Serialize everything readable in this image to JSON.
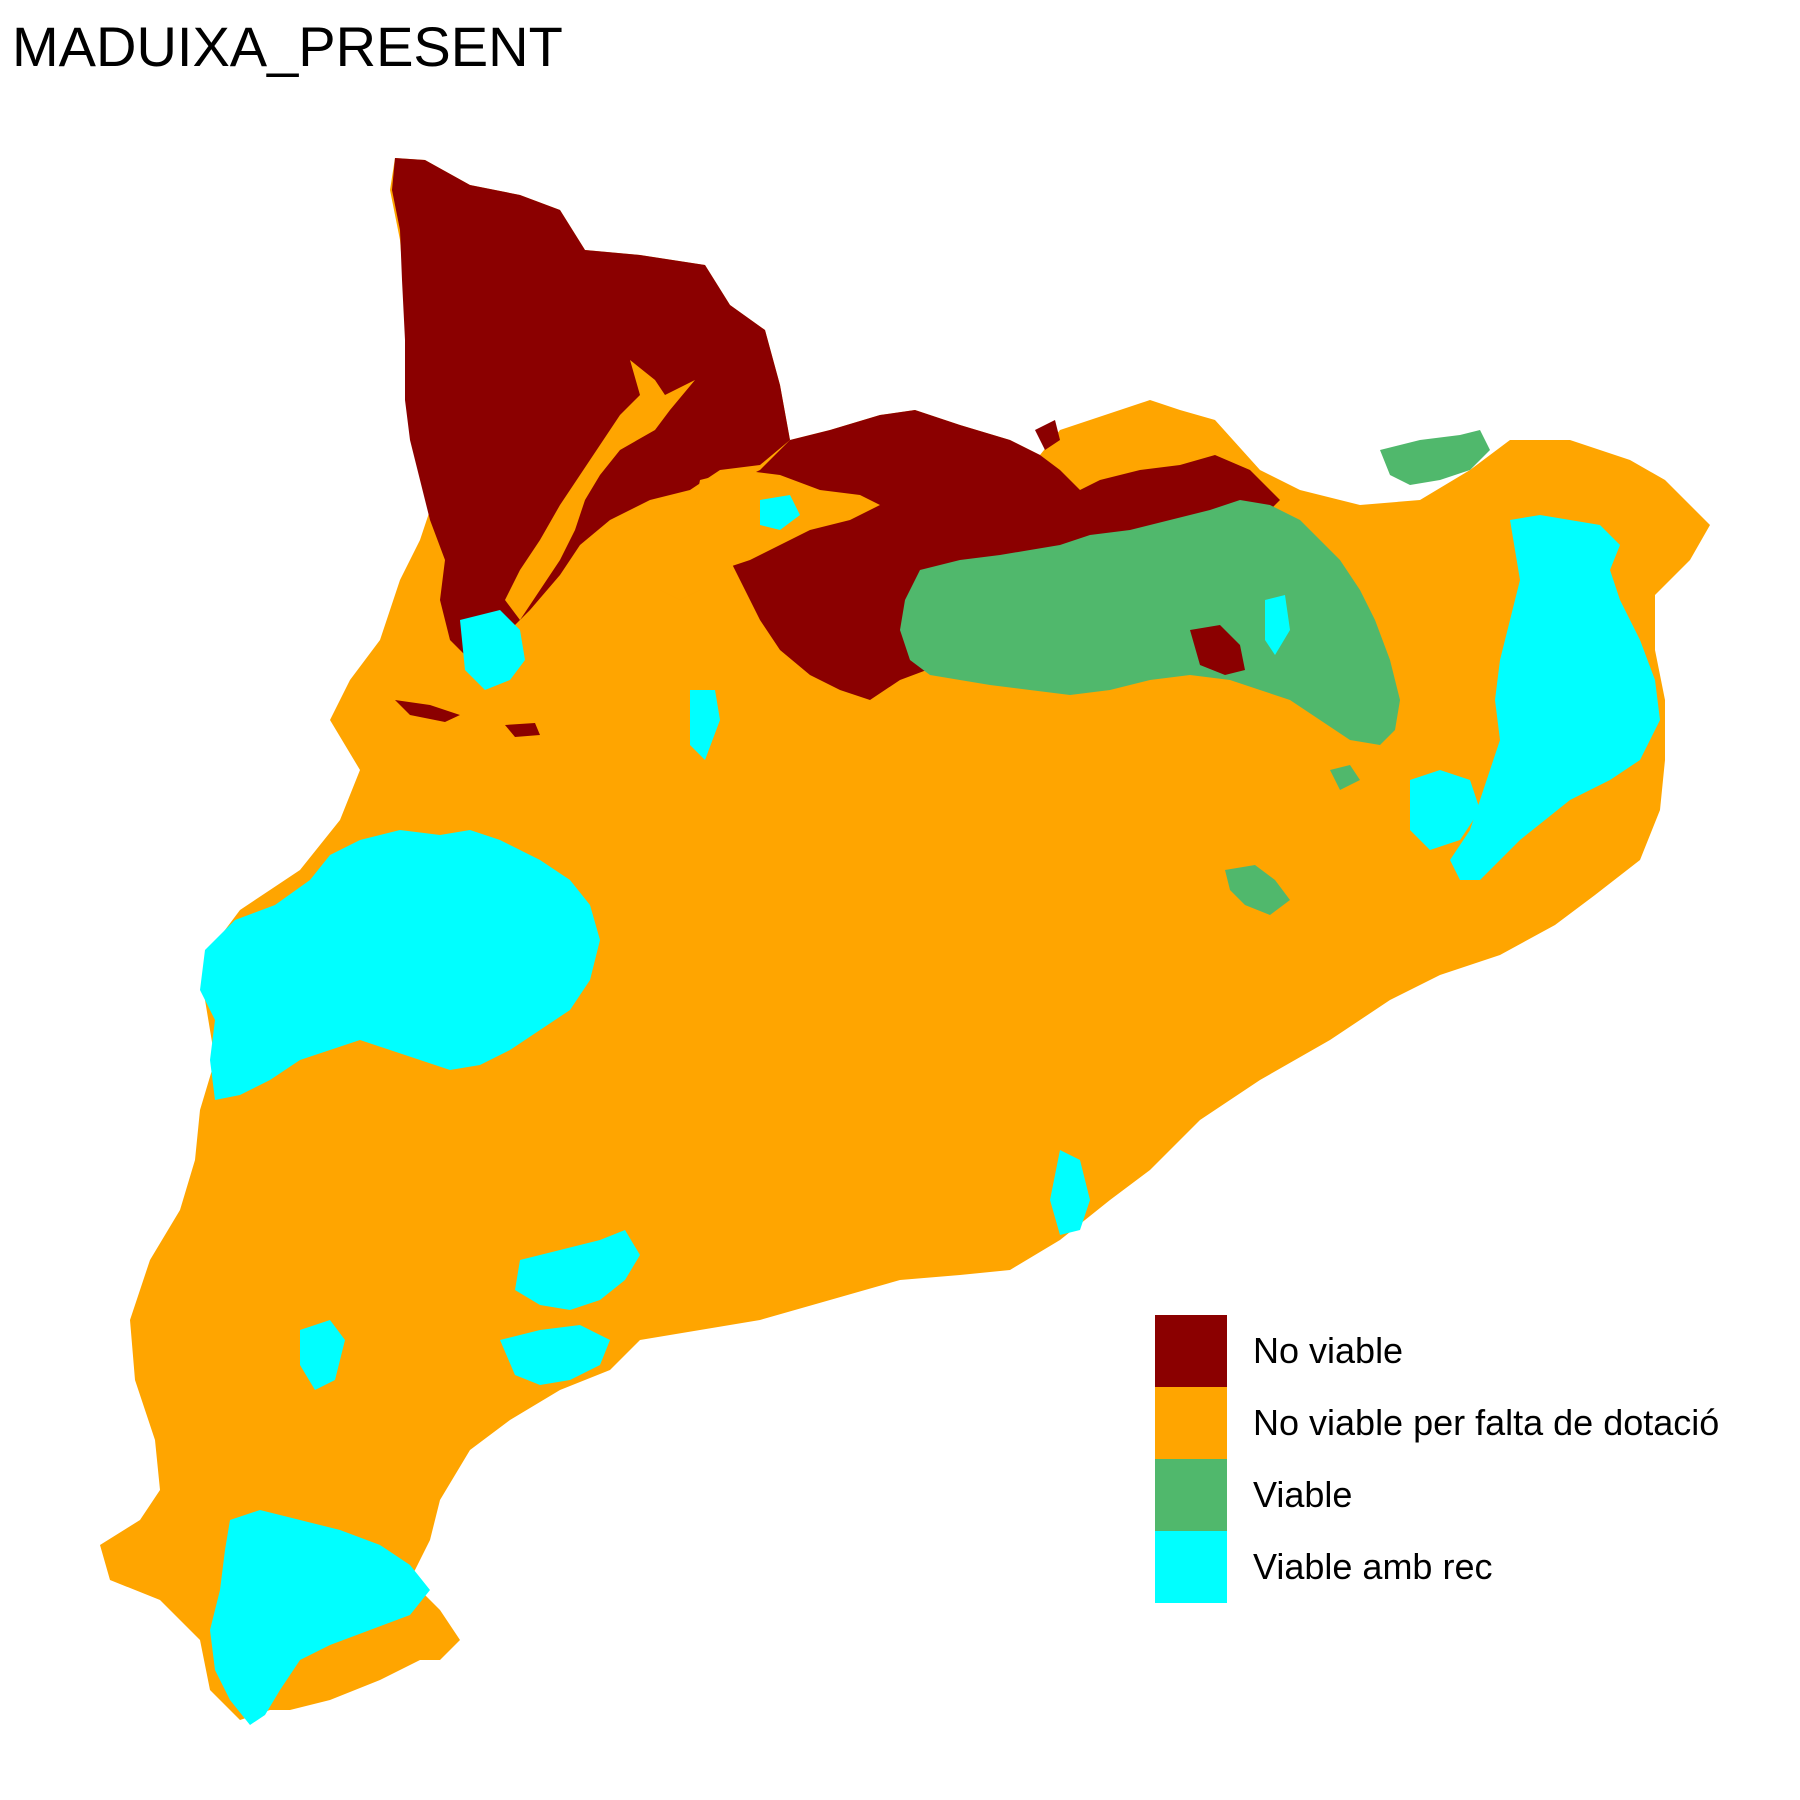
{
  "title": "MADUIXA_PRESENT",
  "legend": {
    "items": [
      {
        "label": "No viable",
        "color": "#8B0000"
      },
      {
        "label": "No viable per falta de dotació",
        "color": "#FFA500"
      },
      {
        "label": "Viable",
        "color": "#50B86C"
      },
      {
        "label": "Viable amb rec",
        "color": "#00FFFF"
      }
    ]
  }
}
